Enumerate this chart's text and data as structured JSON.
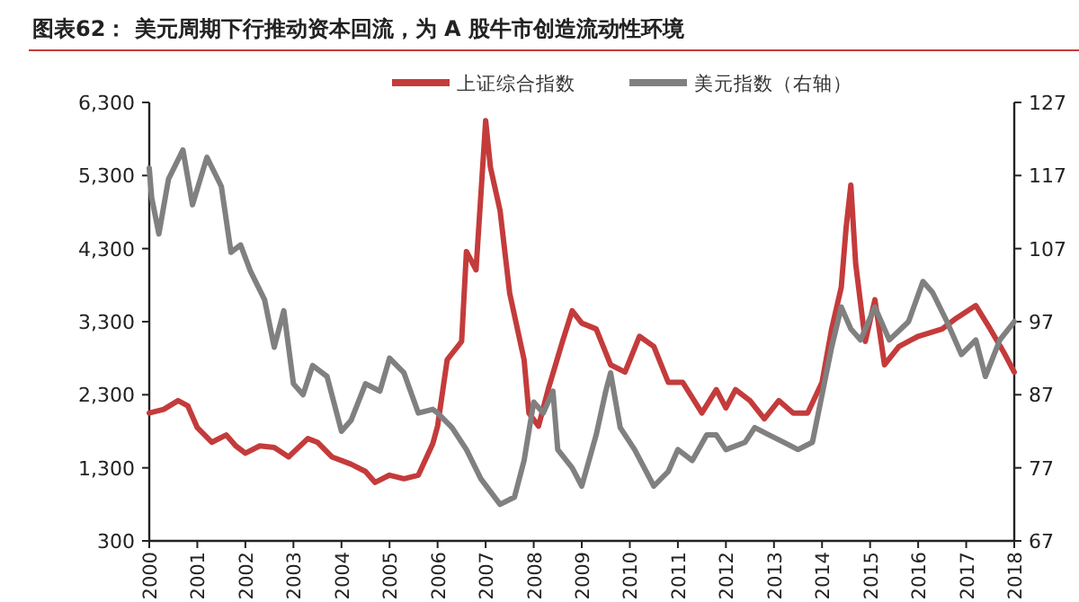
{
  "chart_data": {
    "type": "line",
    "title": "图表62：  美元周期下行推动资本回流，为 A 股牛市创造流动性环境",
    "legend": "top",
    "grid": false,
    "xlim": [
      2000,
      2018
    ],
    "xticks": [
      2000,
      2001,
      2002,
      2003,
      2004,
      2005,
      2006,
      2007,
      2008,
      2009,
      2010,
      2011,
      2012,
      2013,
      2014,
      2015,
      2016,
      2017,
      2018
    ],
    "ylim": [
      300,
      6300
    ],
    "yticks": [
      {
        "value": 300,
        "label": "300"
      },
      {
        "value": 1300,
        "label": "1,300"
      },
      {
        "value": 2300,
        "label": "2,300"
      },
      {
        "value": 3300,
        "label": "3,300"
      },
      {
        "value": 4300,
        "label": "4,300"
      },
      {
        "value": 5300,
        "label": "5,300"
      },
      {
        "value": 6300,
        "label": "6,300"
      }
    ],
    "y2lim": [
      67,
      127
    ],
    "y2ticks": [
      67,
      77,
      87,
      97,
      107,
      117,
      127
    ],
    "series": [
      {
        "name": "上证综合指数",
        "color": "#c43b3b",
        "x": [
          2000.0,
          2000.3,
          2000.6,
          2000.8,
          2001.0,
          2001.3,
          2001.6,
          2001.8,
          2002.0,
          2002.3,
          2002.6,
          2002.9,
          2003.3,
          2003.5,
          2003.8,
          2004.2,
          2004.5,
          2004.7,
          2005.0,
          2005.3,
          2005.6,
          2005.9,
          2006.0,
          2006.2,
          2006.5,
          2006.6,
          2006.8,
          2007.0,
          2007.1,
          2007.3,
          2007.5,
          2007.8,
          2007.9,
          2008.1,
          2008.3,
          2008.6,
          2008.8,
          2009.0,
          2009.3,
          2009.6,
          2009.9,
          2010.2,
          2010.5,
          2010.8,
          2011.1,
          2011.5,
          2011.8,
          2012.0,
          2012.2,
          2012.5,
          2012.8,
          2013.1,
          2013.4,
          2013.7,
          2014.0,
          2014.2,
          2014.4,
          2014.5,
          2014.6,
          2014.7,
          2014.9,
          2015.1,
          2015.3,
          2015.6,
          2016.0,
          2016.5,
          2016.8,
          2017.2,
          2017.5,
          2017.8,
          2018.0
        ],
        "values": [
          2050,
          2100,
          2220,
          2150,
          1850,
          1650,
          1750,
          1600,
          1500,
          1600,
          1580,
          1450,
          1700,
          1650,
          1450,
          1350,
          1250,
          1100,
          1200,
          1150,
          1200,
          1630,
          1870,
          2780,
          3030,
          4260,
          4010,
          6050,
          5410,
          4820,
          3690,
          2780,
          2050,
          1870,
          2370,
          3030,
          3450,
          3280,
          3200,
          2710,
          2610,
          3100,
          2960,
          2470,
          2470,
          2050,
          2370,
          2120,
          2370,
          2220,
          1970,
          2220,
          2050,
          2050,
          2470,
          3200,
          3770,
          4580,
          5170,
          4090,
          3030,
          3600,
          2710,
          2960,
          3100,
          3200,
          3350,
          3520,
          3200,
          2860,
          2610
        ]
      },
      {
        "name": "美元指数（右轴）",
        "color": "#808080",
        "axis": "y2",
        "x": [
          2000.0,
          2000.05,
          2000.2,
          2000.4,
          2000.7,
          2000.9,
          2001.2,
          2001.5,
          2001.7,
          2001.9,
          2002.1,
          2002.4,
          2002.6,
          2002.8,
          2003.0,
          2003.2,
          2003.4,
          2003.7,
          2004.0,
          2004.2,
          2004.5,
          2004.8,
          2005.0,
          2005.3,
          2005.6,
          2005.9,
          2006.0,
          2006.3,
          2006.6,
          2006.9,
          2007.3,
          2007.6,
          2007.8,
          2008.0,
          2008.2,
          2008.4,
          2008.5,
          2008.8,
          2009.0,
          2009.3,
          2009.5,
          2009.6,
          2009.8,
          2010.1,
          2010.5,
          2010.8,
          2011.0,
          2011.3,
          2011.6,
          2011.8,
          2012.0,
          2012.4,
          2012.6,
          2012.9,
          2013.2,
          2013.5,
          2013.8,
          2014.0,
          2014.2,
          2014.4,
          2014.6,
          2014.8,
          2015.1,
          2015.4,
          2015.8,
          2016.1,
          2016.3,
          2016.6,
          2016.9,
          2017.2,
          2017.4,
          2017.7,
          2018.0
        ],
        "values": [
          118,
          114,
          109,
          116.5,
          120.5,
          113,
          119.5,
          115.5,
          106.5,
          107.5,
          104,
          100,
          93.5,
          98.5,
          88.5,
          87,
          91,
          89.5,
          82,
          83.5,
          88.5,
          87.5,
          92,
          90,
          84.5,
          85,
          84.5,
          82.5,
          79.5,
          75.5,
          72,
          73,
          78,
          86,
          84.5,
          87.5,
          79.5,
          77,
          74.5,
          81.5,
          87.5,
          90,
          82.5,
          79.5,
          74.5,
          76.5,
          79.5,
          78,
          81.5,
          81.5,
          79.5,
          80.5,
          82.5,
          81.5,
          80.5,
          79.5,
          80.5,
          87,
          93.5,
          99,
          96,
          94.5,
          99,
          94.5,
          97,
          102.5,
          101,
          97,
          92.5,
          94.5,
          89.5,
          94.5,
          97
        ]
      }
    ]
  }
}
